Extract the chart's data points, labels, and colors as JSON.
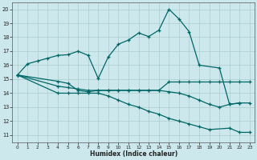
{
  "xlabel": "Humidex (Indice chaleur)",
  "bg_color": "#cce8ec",
  "grid_color": "#aacccc",
  "line_color": "#006666",
  "xlim": [
    -0.5,
    23.5
  ],
  "ylim": [
    10.5,
    20.5
  ],
  "yticks": [
    11,
    12,
    13,
    14,
    15,
    16,
    17,
    18,
    19,
    20
  ],
  "xticks": [
    0,
    1,
    2,
    3,
    4,
    5,
    6,
    7,
    8,
    9,
    10,
    11,
    12,
    13,
    14,
    15,
    16,
    17,
    18,
    19,
    20,
    21,
    22,
    23
  ],
  "line1_x": [
    0,
    1,
    2,
    3,
    4,
    5,
    6,
    7,
    8,
    9,
    10,
    11,
    12,
    13,
    14,
    15,
    16,
    17,
    18,
    20,
    21,
    22
  ],
  "line1_y": [
    15.3,
    16.1,
    16.3,
    16.5,
    16.7,
    16.75,
    17.0,
    16.7,
    15.05,
    16.6,
    17.5,
    17.8,
    18.3,
    18.05,
    18.5,
    20.0,
    19.3,
    18.4,
    16.0,
    15.8,
    13.2,
    13.3
  ],
  "line2_x": [
    0,
    4,
    5,
    6,
    7,
    8,
    9,
    10,
    11,
    12,
    13,
    14,
    15,
    16,
    17,
    18,
    19,
    20,
    21,
    22,
    23
  ],
  "line2_y": [
    15.3,
    14.85,
    14.7,
    14.2,
    14.1,
    14.2,
    14.2,
    14.2,
    14.2,
    14.2,
    14.2,
    14.2,
    14.8,
    14.8,
    14.8,
    14.8,
    14.8,
    14.8,
    14.8,
    14.8,
    14.8
  ],
  "line3_x": [
    0,
    4,
    5,
    6,
    7,
    8,
    9,
    10,
    11,
    12,
    13,
    14,
    15,
    16,
    17,
    18,
    19,
    20,
    21,
    22,
    23
  ],
  "line3_y": [
    15.3,
    14.5,
    14.4,
    14.3,
    14.2,
    14.2,
    14.2,
    14.2,
    14.2,
    14.2,
    14.2,
    14.2,
    14.1,
    14.0,
    13.8,
    13.5,
    13.2,
    13.0,
    13.2,
    13.3,
    13.3
  ],
  "line4_x": [
    0,
    4,
    5,
    6,
    7,
    8,
    9,
    10,
    11,
    12,
    13,
    14,
    15,
    16,
    17,
    18,
    19,
    21,
    22,
    23
  ],
  "line4_y": [
    15.3,
    14.0,
    14.0,
    14.0,
    14.0,
    14.0,
    13.8,
    13.5,
    13.2,
    13.0,
    12.7,
    12.5,
    12.2,
    12.0,
    11.8,
    11.6,
    11.4,
    11.5,
    11.2,
    11.2
  ]
}
